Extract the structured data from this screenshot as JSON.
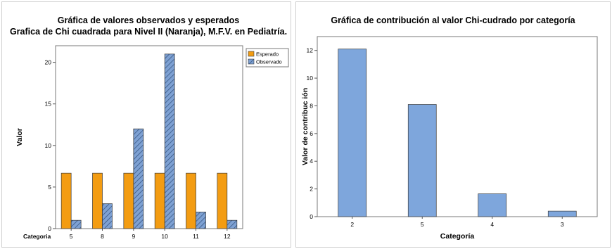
{
  "colors": {
    "esperado": "#F39C12",
    "observado": "#7EA1D3",
    "contribution_bar": "#7EA6DC",
    "bar_outline": "#3A3A3A"
  },
  "chart_data": [
    {
      "type": "bar",
      "title": "Gráfica de valores observados y esperados",
      "subtitle": "Grafica de Chi cuadrada para Nivel II (Naranja), M.F.V. en Pediatría.",
      "xlabel": "Categoria",
      "ylabel": "Valor",
      "categories": [
        "5",
        "8",
        "9",
        "10",
        "11",
        "12"
      ],
      "series": [
        {
          "name": "Esperado",
          "values": [
            6.67,
            6.67,
            6.67,
            6.67,
            6.67,
            6.67
          ]
        },
        {
          "name": "Observado",
          "values": [
            1,
            3,
            12,
            21,
            2,
            1
          ]
        }
      ],
      "ylim": [
        0,
        22
      ],
      "yticks": [
        0,
        5,
        10,
        15,
        20
      ],
      "grid": false,
      "legend": "top-right"
    },
    {
      "type": "bar",
      "title": "Gráfica de contribución al valor Chi-cudrado por categoría",
      "xlabel": "Categoría",
      "ylabel": "Valor de contribuc ión",
      "categories": [
        "2",
        "5",
        "4",
        "3"
      ],
      "values": [
        12.1,
        8.1,
        1.65,
        0.4
      ],
      "ylim": [
        0,
        13
      ],
      "yticks": [
        0,
        2,
        4,
        6,
        8,
        10,
        12
      ],
      "grid": false
    }
  ]
}
